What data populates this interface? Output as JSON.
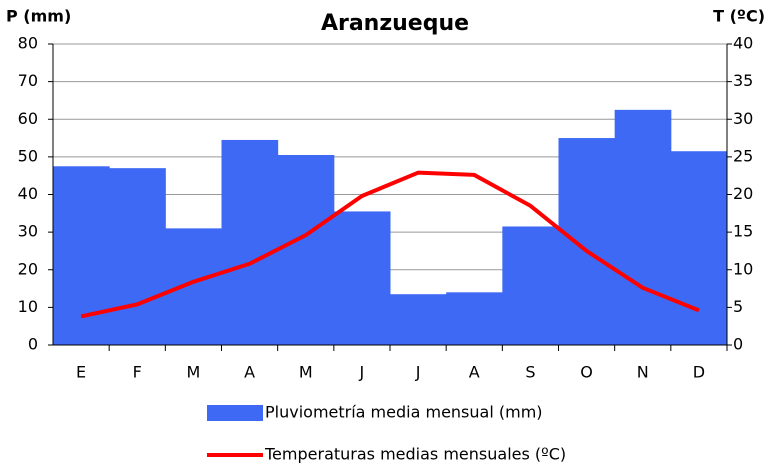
{
  "chart_data": {
    "type": "bar",
    "title": "Aranzueque",
    "y_label": "P (mm)",
    "y2_label": "T (ºC)",
    "categories": [
      "E",
      "F",
      "M",
      "A",
      "M",
      "J",
      "J",
      "A",
      "S",
      "O",
      "N",
      "D"
    ],
    "series": [
      {
        "name": "Pluviometría media mensual (mm)",
        "type": "bar",
        "color": "#3d69f5",
        "values": [
          47.5,
          47,
          31,
          54.5,
          50.5,
          35.5,
          13.5,
          14,
          31.5,
          55,
          62.5,
          51.5
        ]
      },
      {
        "name": "Temperaturas medias mensuales (ºC)",
        "type": "line",
        "axis": "y2",
        "color": "#ff0000",
        "values": [
          3.8,
          5.4,
          8.4,
          10.8,
          14.6,
          19.8,
          22.9,
          22.6,
          18.5,
          12.5,
          7.6,
          4.6
        ]
      }
    ],
    "ylim": [
      0,
      80
    ],
    "yticks": [
      0,
      10,
      20,
      30,
      40,
      50,
      60,
      70,
      80
    ],
    "y2lim": [
      0,
      40
    ],
    "y2ticks": [
      0,
      5,
      10,
      15,
      20,
      25,
      30,
      35,
      40
    ],
    "grid": true,
    "legend": "bottom"
  }
}
